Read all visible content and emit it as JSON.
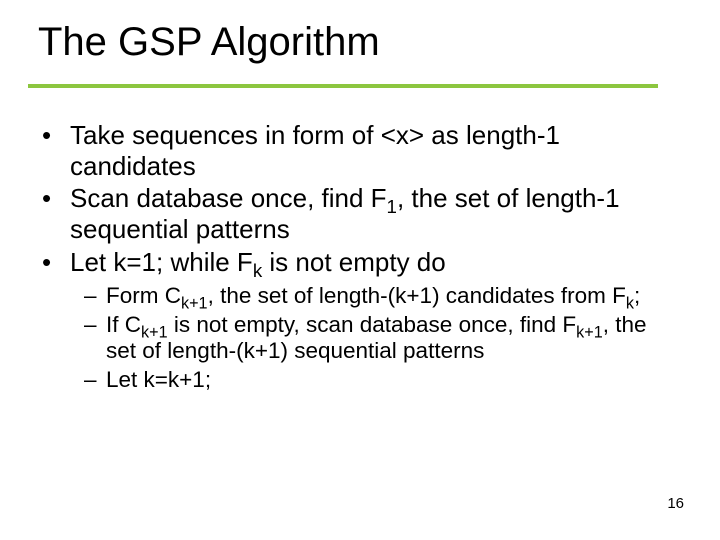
{
  "title": "The GSP Algorithm",
  "rule_color": "#8cc63f",
  "page_number": "16",
  "bullets": [
    {
      "pre": "Take sequences in form of <x> as length-1 candidates"
    },
    {
      "pre": "Scan database once, find F",
      "sub": "1",
      "post": ", the set of length-1 sequential patterns"
    },
    {
      "pre": "Let k=1; while F",
      "sub": "k",
      "post": " is not empty do"
    }
  ],
  "sub_bullets": [
    {
      "parts": [
        {
          "t": "Form C"
        },
        {
          "s": "k+1"
        },
        {
          "t": ", the set of length-(k+1) candidates from F"
        },
        {
          "s": "k"
        },
        {
          "t": ";"
        }
      ]
    },
    {
      "parts": [
        {
          "t": "If C"
        },
        {
          "s": "k+1"
        },
        {
          "t": " is not empty, scan database once, find F"
        },
        {
          "s": "k+1"
        },
        {
          "t": ", the set of length-(k+1) sequential patterns"
        }
      ]
    },
    {
      "parts": [
        {
          "t": "Let k=k+1;"
        }
      ]
    }
  ]
}
